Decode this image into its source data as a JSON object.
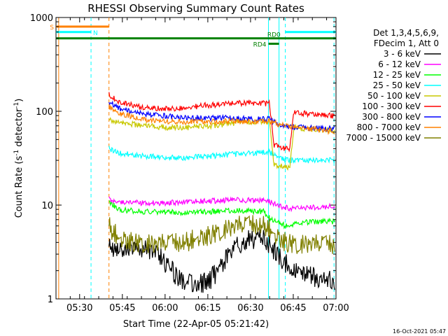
{
  "chart_data": {
    "type": "line",
    "title": "RHESSI Observing Summary Count Rates",
    "xlabel": "Start Time (22-Apr-05 05:21:42)",
    "ylabel_main": "Count Rate (s",
    "ylabel_sup1": "-1",
    "ylabel_mid": " detector",
    "ylabel_sup2": "-1",
    "ylabel_end": ")",
    "yscale": "log",
    "ylim": [
      1,
      1000
    ],
    "xlim_minutes": [
      0,
      98.3
    ],
    "x_ticks": [
      {
        "label": "05:30",
        "m": 8.3
      },
      {
        "label": "05:45",
        "m": 23.3
      },
      {
        "label": "06:00",
        "m": 38.3
      },
      {
        "label": "06:15",
        "m": 53.3
      },
      {
        "label": "06:30",
        "m": 68.3
      },
      {
        "label": "06:45",
        "m": 83.3
      },
      {
        "label": "07:00",
        "m": 98.3
      }
    ],
    "y_ticks": [
      {
        "label": "1",
        "v": 1
      },
      {
        "label": "10",
        "v": 10
      },
      {
        "label": "100",
        "v": 100
      },
      {
        "label": "1000",
        "v": 1000
      }
    ],
    "legend": {
      "position": "right",
      "header1": "Det 1,3,4,5,6,9,",
      "header2": "FDecim 1, Att 0"
    },
    "series": [
      {
        "name": "3 - 6 keV",
        "color": "#000000",
        "points": [
          [
            18.6,
            3.6
          ],
          [
            25,
            3.5
          ],
          [
            32,
            3.4
          ],
          [
            36,
            3.0
          ],
          [
            39,
            2.3
          ],
          [
            42,
            1.8
          ],
          [
            46,
            1.5
          ],
          [
            50,
            1.4
          ],
          [
            54,
            1.6
          ],
          [
            58,
            2.2
          ],
          [
            62,
            3.3
          ],
          [
            66,
            4.1
          ],
          [
            70,
            4.4
          ],
          [
            73,
            4.2
          ],
          [
            76,
            3.4
          ],
          [
            80,
            2.5
          ],
          [
            83,
            2.0
          ],
          [
            88,
            1.8
          ],
          [
            94,
            1.6
          ],
          [
            98,
            1.5
          ]
        ]
      },
      {
        "name": "6 - 12 keV",
        "color": "#ff00ff",
        "points": [
          [
            18.6,
            11.5
          ],
          [
            22,
            11.0
          ],
          [
            28,
            10.6
          ],
          [
            34,
            10.5
          ],
          [
            40,
            10.6
          ],
          [
            46,
            10.8
          ],
          [
            52,
            11.0
          ],
          [
            58,
            11.2
          ],
          [
            64,
            11.3
          ],
          [
            70,
            11.2
          ],
          [
            74,
            11.0
          ],
          [
            76,
            10.5
          ],
          [
            80,
            9.4
          ],
          [
            84,
            9.2
          ],
          [
            88,
            9.4
          ],
          [
            93,
            9.5
          ],
          [
            98,
            9.6
          ]
        ]
      },
      {
        "name": "12 - 25 keV",
        "color": "#00ff00",
        "points": [
          [
            18.6,
            11.0
          ],
          [
            22,
            9.0
          ],
          [
            28,
            8.6
          ],
          [
            34,
            8.5
          ],
          [
            40,
            8.4
          ],
          [
            46,
            8.3
          ],
          [
            52,
            8.5
          ],
          [
            58,
            8.6
          ],
          [
            64,
            8.7
          ],
          [
            70,
            8.6
          ],
          [
            73,
            8.5
          ],
          [
            75,
            7.2
          ],
          [
            79,
            6.3
          ],
          [
            82,
            5.8
          ],
          [
            85,
            6.6
          ],
          [
            90,
            6.6
          ],
          [
            98,
            6.7
          ]
        ]
      },
      {
        "name": "25 - 50 keV",
        "color": "#00ffff",
        "points": [
          [
            18.6,
            40
          ],
          [
            22,
            36
          ],
          [
            28,
            34
          ],
          [
            34,
            33
          ],
          [
            40,
            32
          ],
          [
            46,
            32
          ],
          [
            52,
            33
          ],
          [
            58,
            34
          ],
          [
            64,
            35
          ],
          [
            70,
            36
          ],
          [
            75,
            36.5
          ],
          [
            80,
            30.5
          ],
          [
            84,
            30
          ],
          [
            90,
            30
          ],
          [
            98,
            30
          ]
        ]
      },
      {
        "name": "50 - 100 keV",
        "color": "#c8c800",
        "points": [
          [
            18.6,
            82
          ],
          [
            22,
            76
          ],
          [
            28,
            72
          ],
          [
            34,
            69
          ],
          [
            40,
            67
          ],
          [
            46,
            67
          ],
          [
            52,
            69
          ],
          [
            58,
            72
          ],
          [
            64,
            76
          ],
          [
            70,
            78
          ],
          [
            75,
            78
          ],
          [
            76.5,
            27
          ],
          [
            79,
            26
          ],
          [
            82,
            25
          ],
          [
            83.5,
            67
          ],
          [
            88,
            65
          ],
          [
            93,
            64
          ],
          [
            98,
            62
          ]
        ]
      },
      {
        "name": "100 - 300 keV",
        "color": "#ff0000",
        "points": [
          [
            18.6,
            150
          ],
          [
            22,
            128
          ],
          [
            28,
            113
          ],
          [
            34,
            108
          ],
          [
            40,
            106
          ],
          [
            46,
            108
          ],
          [
            52,
            116
          ],
          [
            58,
            118
          ],
          [
            64,
            122
          ],
          [
            70,
            122
          ],
          [
            75,
            121
          ],
          [
            76.5,
            44
          ],
          [
            79,
            41
          ],
          [
            82,
            40
          ],
          [
            83.5,
            99
          ],
          [
            88,
            94
          ],
          [
            93,
            91
          ],
          [
            98,
            89
          ]
        ]
      },
      {
        "name": "300 - 800 keV",
        "color": "#0000ff",
        "points": [
          [
            18.6,
            125
          ],
          [
            22,
            107
          ],
          [
            28,
            97
          ],
          [
            34,
            91
          ],
          [
            40,
            88
          ],
          [
            46,
            86
          ],
          [
            52,
            85
          ],
          [
            58,
            85
          ],
          [
            64,
            84
          ],
          [
            70,
            83
          ],
          [
            75,
            82
          ],
          [
            79,
            71
          ],
          [
            84,
            68
          ],
          [
            88,
            67
          ],
          [
            93,
            66
          ],
          [
            98,
            65
          ]
        ]
      },
      {
        "name": "800 - 7000 keV",
        "color": "#ff8000",
        "points": [
          [
            18.6,
            112
          ],
          [
            22,
            95
          ],
          [
            28,
            85
          ],
          [
            34,
            80
          ],
          [
            40,
            78
          ],
          [
            46,
            77
          ],
          [
            52,
            77
          ],
          [
            58,
            78
          ],
          [
            64,
            78
          ],
          [
            70,
            78
          ],
          [
            75,
            77.5
          ],
          [
            79,
            72
          ],
          [
            84,
            68
          ],
          [
            88,
            66
          ],
          [
            93,
            63
          ],
          [
            98,
            61
          ]
        ]
      },
      {
        "name": "7000 - 15000 keV",
        "color": "#808000",
        "points": [
          [
            18.6,
            6.0
          ],
          [
            22,
            4.4
          ],
          [
            28,
            4.0
          ],
          [
            34,
            3.8
          ],
          [
            40,
            3.9
          ],
          [
            46,
            4.1
          ],
          [
            52,
            4.6
          ],
          [
            58,
            5.3
          ],
          [
            64,
            6.0
          ],
          [
            70,
            6.2
          ],
          [
            74,
            6.0
          ],
          [
            77,
            4.7
          ],
          [
            81,
            4.0
          ],
          [
            85,
            3.8
          ],
          [
            90,
            3.8
          ],
          [
            98,
            3.8
          ]
        ]
      }
    ],
    "vlines": [
      {
        "m": 0.95,
        "color": "#ff8000",
        "dashed": false
      },
      {
        "m": 12.3,
        "color": "#00ffff",
        "dashed": true
      },
      {
        "m": 18.6,
        "color": "#ff8000",
        "dashed": true
      },
      {
        "m": 74.6,
        "color": "#00ffff",
        "dashed": false
      },
      {
        "m": 78.3,
        "color": "#00ffff",
        "dashed": false
      },
      {
        "m": 80.5,
        "color": "#00ffff",
        "dashed": true
      },
      {
        "m": 97.6,
        "color": "#00ffff",
        "dashed": true
      }
    ],
    "flag_bars": [
      {
        "label": "S",
        "color": "#ff8000",
        "m0": 0,
        "m1": 18.6,
        "v": 800,
        "label_at": "left"
      },
      {
        "label": "N",
        "color": "#00ffff",
        "m0": 0,
        "m1": 12.3,
        "v": 700,
        "label_at": "end"
      },
      {
        "label": "",
        "color": "#00ffff",
        "m0": 80.5,
        "m1": 98.3,
        "v": 700,
        "label_at": "none"
      },
      {
        "label": "",
        "color": "#008000",
        "m0": 0,
        "m1": 98.3,
        "v": 600,
        "label_at": "none"
      },
      {
        "label": "RD4",
        "color": "#008000",
        "m0": 74.6,
        "m1": 78.3,
        "v": 525,
        "label_at": "left"
      },
      {
        "label": "RD0",
        "color": "#008000",
        "m0": 76.5,
        "m1": 76.5,
        "v": 600,
        "label_at": "above"
      }
    ]
  },
  "footer": {
    "timestamp": "16-Oct-2021 05:47"
  }
}
